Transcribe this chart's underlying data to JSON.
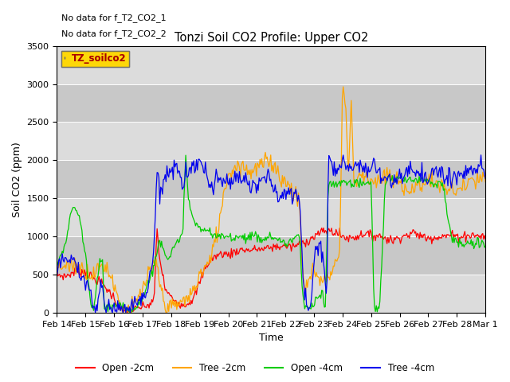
{
  "title": "Tonzi Soil CO2 Profile: Upper CO2",
  "xlabel": "Time",
  "ylabel": "Soil CO2 (ppm)",
  "ylim": [
    0,
    3500
  ],
  "yticks": [
    0,
    500,
    1000,
    1500,
    2000,
    2500,
    3000,
    3500
  ],
  "note1": "No data for f_T2_CO2_1",
  "note2": "No data for f_T2_CO2_2",
  "legend_label": "TZ_soilco2",
  "legend_box_color": "#FFD700",
  "legend_box_text_color": "#AA0000",
  "series_labels": [
    "Open -2cm",
    "Tree -2cm",
    "Open -4cm",
    "Tree -4cm"
  ],
  "series_colors": [
    "#FF0000",
    "#FFA500",
    "#00CC00",
    "#0000EE"
  ],
  "bg_color": "#DCDCDC",
  "xtick_labels": [
    "Feb 14",
    "Feb 15",
    "Feb 16",
    "Feb 17",
    "Feb 18",
    "Feb 19",
    "Feb 20",
    "Feb 21",
    "Feb 22",
    "Feb 23",
    "Feb 24",
    "Feb 25",
    "Feb 26",
    "Feb 27",
    "Feb 28",
    "Mar 1"
  ]
}
